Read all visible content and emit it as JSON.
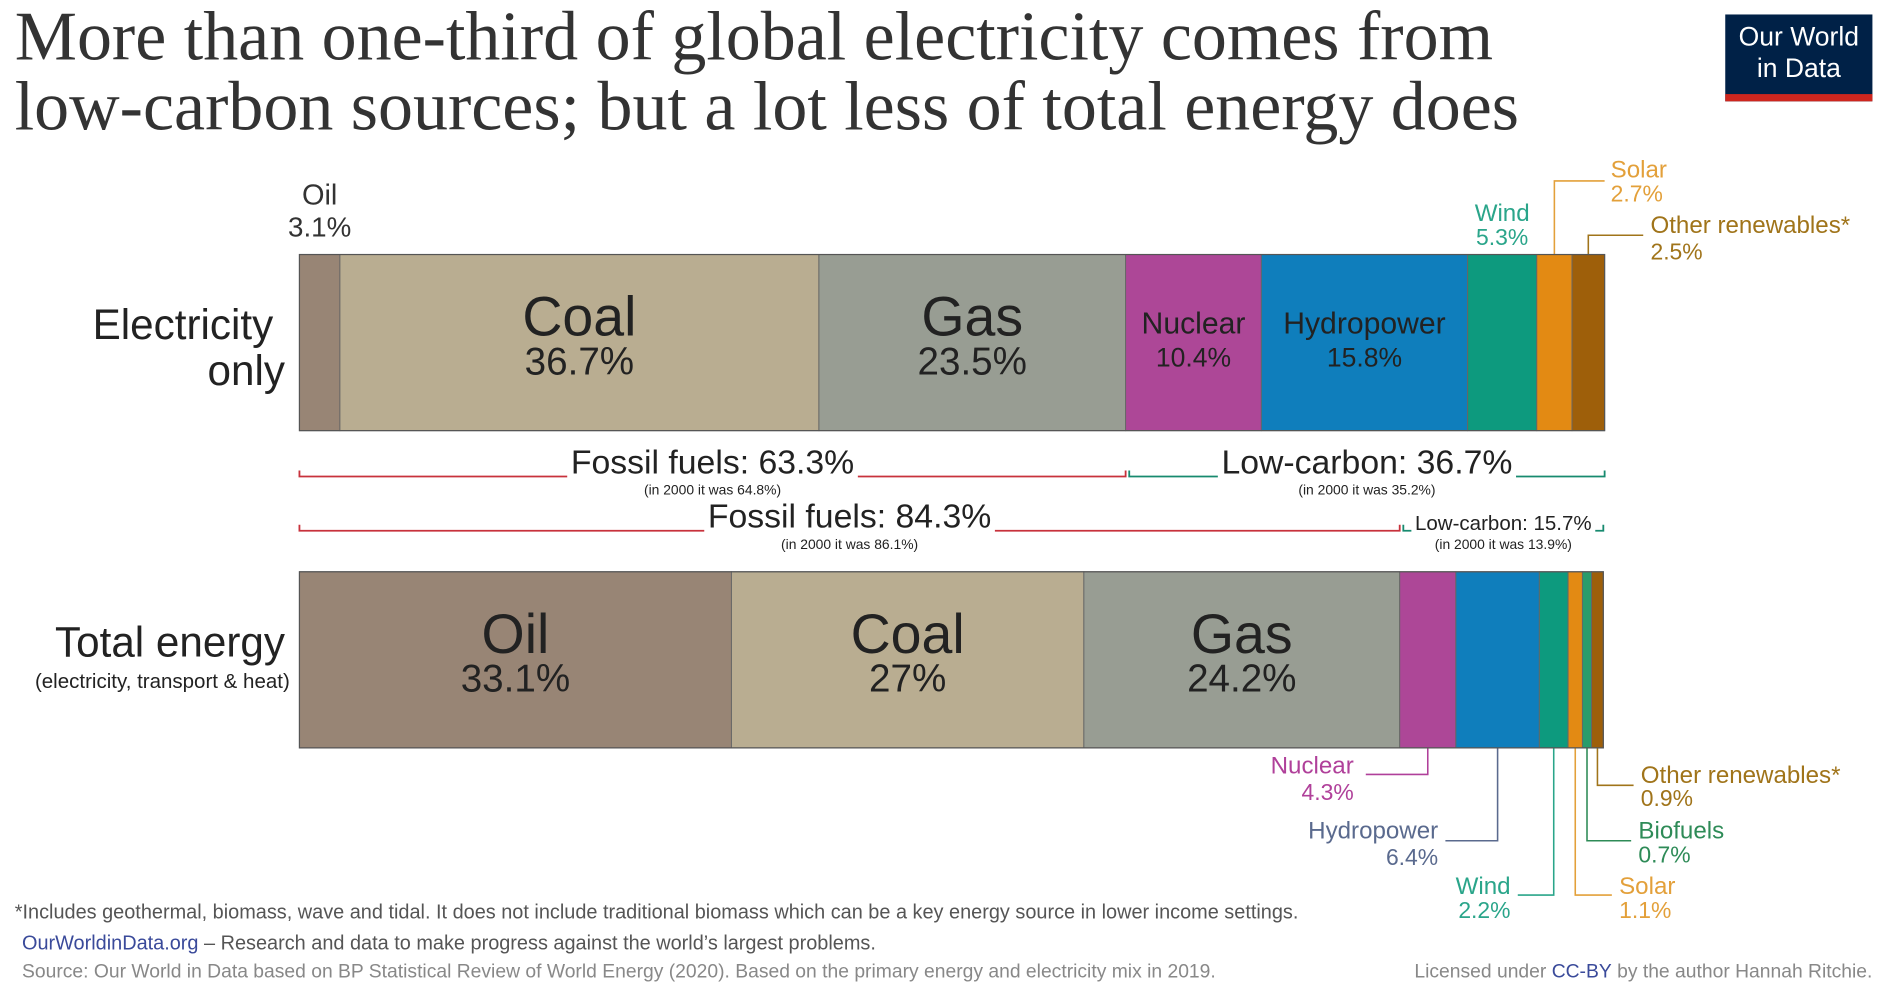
{
  "logo": {
    "line1": "Our World",
    "line2": "in Data"
  },
  "chart_data": {
    "type": "bar",
    "orientation": "horizontal",
    "stacked": true,
    "title": [
      "More than one-third of global electricity comes from",
      "low-carbon sources; but a lot less of total energy does"
    ],
    "categories": [
      "Electricity only",
      "Total energy"
    ],
    "category_notes": [
      null,
      "(electricity, transport & heat)"
    ],
    "xlim": [
      0,
      100
    ],
    "series": [
      {
        "name": "Oil",
        "color": "#988575",
        "label_color": "#333333",
        "values": [
          3.1,
          33.1
        ],
        "value_labels": [
          "3.1%",
          "33.1%"
        ]
      },
      {
        "name": "Coal",
        "color": "#b9ad91",
        "label_color": "#222222",
        "values": [
          36.7,
          27
        ],
        "value_labels": [
          "36.7%",
          "27%"
        ]
      },
      {
        "name": "Gas",
        "color": "#989d93",
        "label_color": "#222222",
        "values": [
          23.5,
          24.2
        ],
        "value_labels": [
          "23.5%",
          "24.2%"
        ]
      },
      {
        "name": "Nuclear",
        "color": "#ad4797",
        "label_color": "#b0409a",
        "values": [
          10.4,
          4.3
        ],
        "value_labels": [
          "10.4%",
          "4.3%"
        ]
      },
      {
        "name": "Hydropower",
        "color": "#0f7ebc",
        "label_color": "#5a6a8e",
        "values": [
          15.8,
          6.4
        ],
        "value_labels": [
          "15.8%",
          "6.4%"
        ]
      },
      {
        "name": "Wind",
        "color": "#0d9a7e",
        "label_color": "#2aa58a",
        "values": [
          5.3,
          2.2
        ],
        "value_labels": [
          "5.3%",
          "2.2%"
        ]
      },
      {
        "name": "Solar",
        "color": "#e38a13",
        "label_color": "#e3a03a",
        "values": [
          2.7,
          1.1
        ],
        "value_labels": [
          "2.7%",
          "1.1%"
        ]
      },
      {
        "name": "Biofuels",
        "color": "#2a9c6b",
        "label_color": "#2e8b57",
        "values": [
          null,
          0.7
        ],
        "value_labels": [
          null,
          "0.7%"
        ]
      },
      {
        "name": "Other renewables*",
        "color": "#9e5f0a",
        "label_color": "#a0741a",
        "values": [
          2.5,
          0.9
        ],
        "value_labels": [
          "2.5%",
          "0.9%"
        ]
      }
    ],
    "brackets": [
      [
        {
          "text": "Fossil fuels: 63.3%",
          "note": "(in 2000 it was 64.8%)",
          "color": "#c8323c"
        },
        {
          "text": "Low-carbon: 36.7%",
          "note": "(in 2000 it was 35.2%)",
          "color": "#178a6f"
        }
      ],
      [
        {
          "text": "Fossil fuels: 84.3%",
          "note": "(in 2000 it was 86.1%)",
          "color": "#c8323c"
        },
        {
          "text": "Low-carbon: 15.7%",
          "note": "(in 2000 it was 13.9%)",
          "color": "#178a6f"
        }
      ]
    ]
  },
  "footer": {
    "footnote": "*Includes geothermal, biomass, wave and tidal. It does not include traditional biomass which can be a key energy source in lower income settings.",
    "site": "OurWorldinData.org",
    "tagline": " – Research and data to make progress against the world’s largest problems.",
    "source": "Source: Our World in Data based on BP Statistical Review of World Energy (2020). Based on the primary energy and electricity mix in 2019.",
    "license_prefix": "Licensed under ",
    "license_link": "CC-BY",
    "license_suffix": " by the author Hannah Ritchie."
  }
}
